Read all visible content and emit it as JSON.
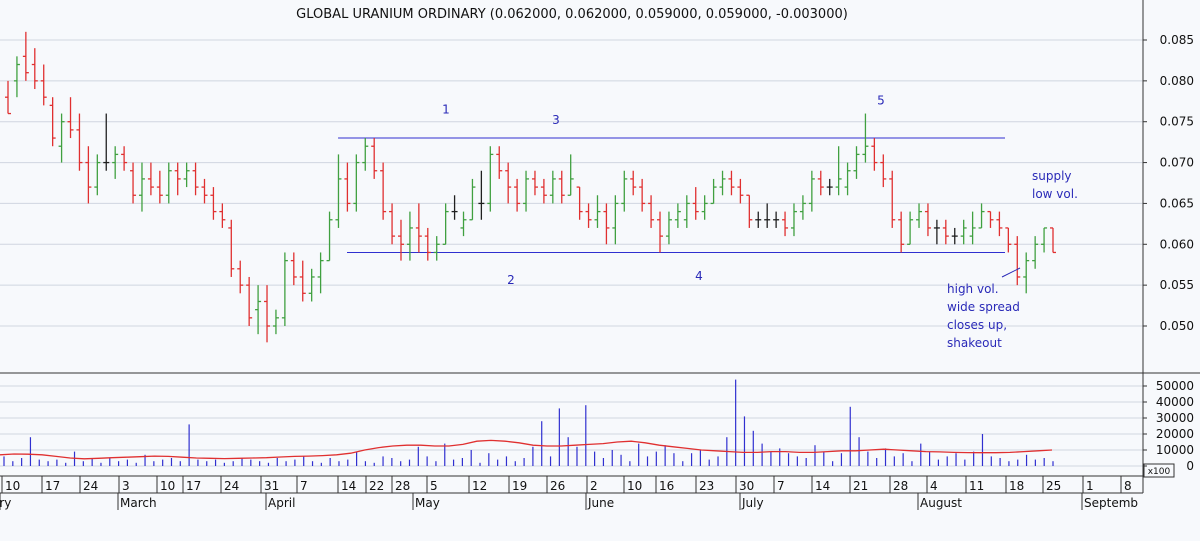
{
  "chart_data": {
    "type": "ohlc",
    "title": "GLOBAL URANIUM ORDINARY (0.062000, 0.062000, 0.059000, 0.059000, -0.003000)",
    "price_axis": {
      "ticks": [
        "0.085",
        "0.080",
        "0.075",
        "0.070",
        "0.065",
        "0.060",
        "0.055",
        "0.050"
      ],
      "range": [
        0.0455,
        0.089
      ]
    },
    "volume_axis": {
      "ticks": [
        "50000",
        "40000",
        "30000",
        "20000",
        "10000",
        "0"
      ],
      "range": [
        0,
        58000
      ],
      "unit_label": "x100"
    },
    "x_axis": {
      "day_labels": [
        "10",
        "17",
        "24",
        "3",
        "10",
        "17",
        "24",
        "31",
        "7",
        "14",
        "22",
        "28",
        "5",
        "12",
        "19",
        "26",
        "2",
        "10",
        "16",
        "23",
        "30",
        "7",
        "14",
        "21",
        "28",
        "4",
        "11",
        "18",
        "25",
        "1",
        "8"
      ],
      "month_labels": [
        "ary",
        "March",
        "April",
        "May",
        "June",
        "July",
        "August",
        "Septemb"
      ]
    },
    "bars": [
      {
        "o": 0.078,
        "h": 0.08,
        "l": 0.076,
        "c": 0.076
      },
      {
        "o": 0.08,
        "h": 0.083,
        "l": 0.078,
        "c": 0.082
      },
      {
        "o": 0.083,
        "h": 0.086,
        "l": 0.08,
        "c": 0.081
      },
      {
        "o": 0.082,
        "h": 0.084,
        "l": 0.079,
        "c": 0.08
      },
      {
        "o": 0.08,
        "h": 0.082,
        "l": 0.077,
        "c": 0.078
      },
      {
        "o": 0.077,
        "h": 0.078,
        "l": 0.072,
        "c": 0.073
      },
      {
        "o": 0.072,
        "h": 0.076,
        "l": 0.07,
        "c": 0.075
      },
      {
        "o": 0.075,
        "h": 0.078,
        "l": 0.073,
        "c": 0.074
      },
      {
        "o": 0.074,
        "h": 0.076,
        "l": 0.069,
        "c": 0.07
      },
      {
        "o": 0.07,
        "h": 0.072,
        "l": 0.065,
        "c": 0.067
      },
      {
        "o": 0.067,
        "h": 0.071,
        "l": 0.066,
        "c": 0.07
      },
      {
        "o": 0.07,
        "h": 0.076,
        "l": 0.069,
        "c": 0.07
      },
      {
        "o": 0.07,
        "h": 0.072,
        "l": 0.068,
        "c": 0.071
      },
      {
        "o": 0.071,
        "h": 0.072,
        "l": 0.069,
        "c": 0.07
      },
      {
        "o": 0.069,
        "h": 0.07,
        "l": 0.065,
        "c": 0.066
      },
      {
        "o": 0.066,
        "h": 0.07,
        "l": 0.064,
        "c": 0.068
      },
      {
        "o": 0.068,
        "h": 0.07,
        "l": 0.066,
        "c": 0.067
      },
      {
        "o": 0.067,
        "h": 0.069,
        "l": 0.065,
        "c": 0.066
      },
      {
        "o": 0.066,
        "h": 0.07,
        "l": 0.065,
        "c": 0.069
      },
      {
        "o": 0.069,
        "h": 0.07,
        "l": 0.066,
        "c": 0.068
      },
      {
        "o": 0.068,
        "h": 0.07,
        "l": 0.067,
        "c": 0.069
      },
      {
        "o": 0.069,
        "h": 0.07,
        "l": 0.066,
        "c": 0.067
      },
      {
        "o": 0.067,
        "h": 0.068,
        "l": 0.065,
        "c": 0.066
      },
      {
        "o": 0.066,
        "h": 0.067,
        "l": 0.063,
        "c": 0.064
      },
      {
        "o": 0.064,
        "h": 0.065,
        "l": 0.062,
        "c": 0.063
      },
      {
        "o": 0.062,
        "h": 0.063,
        "l": 0.056,
        "c": 0.057
      },
      {
        "o": 0.057,
        "h": 0.058,
        "l": 0.054,
        "c": 0.055
      },
      {
        "o": 0.055,
        "h": 0.056,
        "l": 0.05,
        "c": 0.051
      },
      {
        "o": 0.052,
        "h": 0.055,
        "l": 0.049,
        "c": 0.053
      },
      {
        "o": 0.053,
        "h": 0.055,
        "l": 0.048,
        "c": 0.05
      },
      {
        "o": 0.05,
        "h": 0.052,
        "l": 0.049,
        "c": 0.051
      },
      {
        "o": 0.051,
        "h": 0.059,
        "l": 0.05,
        "c": 0.058
      },
      {
        "o": 0.058,
        "h": 0.059,
        "l": 0.055,
        "c": 0.056
      },
      {
        "o": 0.056,
        "h": 0.058,
        "l": 0.053,
        "c": 0.054
      },
      {
        "o": 0.054,
        "h": 0.057,
        "l": 0.053,
        "c": 0.056
      },
      {
        "o": 0.056,
        "h": 0.059,
        "l": 0.054,
        "c": 0.058
      },
      {
        "o": 0.058,
        "h": 0.064,
        "l": 0.058,
        "c": 0.063
      },
      {
        "o": 0.063,
        "h": 0.071,
        "l": 0.062,
        "c": 0.068
      },
      {
        "o": 0.068,
        "h": 0.07,
        "l": 0.064,
        "c": 0.065
      },
      {
        "o": 0.065,
        "h": 0.071,
        "l": 0.064,
        "c": 0.07
      },
      {
        "o": 0.07,
        "h": 0.073,
        "l": 0.069,
        "c": 0.072
      },
      {
        "o": 0.072,
        "h": 0.073,
        "l": 0.068,
        "c": 0.069
      },
      {
        "o": 0.069,
        "h": 0.07,
        "l": 0.063,
        "c": 0.064
      },
      {
        "o": 0.064,
        "h": 0.065,
        "l": 0.06,
        "c": 0.061
      },
      {
        "o": 0.061,
        "h": 0.063,
        "l": 0.058,
        "c": 0.06
      },
      {
        "o": 0.06,
        "h": 0.064,
        "l": 0.058,
        "c": 0.062
      },
      {
        "o": 0.062,
        "h": 0.065,
        "l": 0.059,
        "c": 0.061
      },
      {
        "o": 0.061,
        "h": 0.062,
        "l": 0.058,
        "c": 0.059
      },
      {
        "o": 0.059,
        "h": 0.061,
        "l": 0.058,
        "c": 0.06
      },
      {
        "o": 0.06,
        "h": 0.065,
        "l": 0.06,
        "c": 0.064
      },
      {
        "o": 0.064,
        "h": 0.066,
        "l": 0.063,
        "c": 0.064
      },
      {
        "o": 0.062,
        "h": 0.064,
        "l": 0.061,
        "c": 0.063
      },
      {
        "o": 0.063,
        "h": 0.068,
        "l": 0.063,
        "c": 0.067
      },
      {
        "o": 0.065,
        "h": 0.069,
        "l": 0.063,
        "c": 0.065
      },
      {
        "o": 0.065,
        "h": 0.072,
        "l": 0.064,
        "c": 0.071
      },
      {
        "o": 0.071,
        "h": 0.072,
        "l": 0.068,
        "c": 0.069
      },
      {
        "o": 0.069,
        "h": 0.07,
        "l": 0.065,
        "c": 0.067
      },
      {
        "o": 0.067,
        "h": 0.068,
        "l": 0.064,
        "c": 0.065
      },
      {
        "o": 0.065,
        "h": 0.069,
        "l": 0.064,
        "c": 0.068
      },
      {
        "o": 0.068,
        "h": 0.069,
        "l": 0.066,
        "c": 0.067
      },
      {
        "o": 0.067,
        "h": 0.068,
        "l": 0.065,
        "c": 0.066
      },
      {
        "o": 0.066,
        "h": 0.069,
        "l": 0.065,
        "c": 0.068
      },
      {
        "o": 0.068,
        "h": 0.069,
        "l": 0.065,
        "c": 0.066
      },
      {
        "o": 0.066,
        "h": 0.071,
        "l": 0.066,
        "c": 0.068
      },
      {
        "o": 0.067,
        "h": 0.067,
        "l": 0.063,
        "c": 0.064
      },
      {
        "o": 0.064,
        "h": 0.065,
        "l": 0.062,
        "c": 0.063
      },
      {
        "o": 0.063,
        "h": 0.066,
        "l": 0.062,
        "c": 0.064
      },
      {
        "o": 0.064,
        "h": 0.065,
        "l": 0.06,
        "c": 0.062
      },
      {
        "o": 0.062,
        "h": 0.066,
        "l": 0.06,
        "c": 0.065
      },
      {
        "o": 0.065,
        "h": 0.069,
        "l": 0.064,
        "c": 0.068
      },
      {
        "o": 0.068,
        "h": 0.069,
        "l": 0.066,
        "c": 0.067
      },
      {
        "o": 0.067,
        "h": 0.068,
        "l": 0.064,
        "c": 0.065
      },
      {
        "o": 0.065,
        "h": 0.066,
        "l": 0.062,
        "c": 0.063
      },
      {
        "o": 0.063,
        "h": 0.064,
        "l": 0.059,
        "c": 0.061
      },
      {
        "o": 0.061,
        "h": 0.064,
        "l": 0.06,
        "c": 0.063
      },
      {
        "o": 0.063,
        "h": 0.065,
        "l": 0.062,
        "c": 0.064
      },
      {
        "o": 0.063,
        "h": 0.066,
        "l": 0.062,
        "c": 0.065
      },
      {
        "o": 0.065,
        "h": 0.067,
        "l": 0.063,
        "c": 0.064
      },
      {
        "o": 0.064,
        "h": 0.066,
        "l": 0.063,
        "c": 0.065
      },
      {
        "o": 0.065,
        "h": 0.068,
        "l": 0.065,
        "c": 0.067
      },
      {
        "o": 0.067,
        "h": 0.069,
        "l": 0.066,
        "c": 0.068
      },
      {
        "o": 0.068,
        "h": 0.069,
        "l": 0.066,
        "c": 0.067
      },
      {
        "o": 0.067,
        "h": 0.068,
        "l": 0.065,
        "c": 0.066
      },
      {
        "o": 0.066,
        "h": 0.066,
        "l": 0.062,
        "c": 0.063
      },
      {
        "o": 0.063,
        "h": 0.064,
        "l": 0.062,
        "c": 0.063
      },
      {
        "o": 0.063,
        "h": 0.065,
        "l": 0.062,
        "c": 0.063
      },
      {
        "o": 0.063,
        "h": 0.064,
        "l": 0.062,
        "c": 0.063
      },
      {
        "o": 0.063,
        "h": 0.064,
        "l": 0.061,
        "c": 0.062
      },
      {
        "o": 0.062,
        "h": 0.065,
        "l": 0.061,
        "c": 0.064
      },
      {
        "o": 0.064,
        "h": 0.066,
        "l": 0.063,
        "c": 0.065
      },
      {
        "o": 0.065,
        "h": 0.069,
        "l": 0.064,
        "c": 0.068
      },
      {
        "o": 0.068,
        "h": 0.069,
        "l": 0.066,
        "c": 0.067
      },
      {
        "o": 0.067,
        "h": 0.068,
        "l": 0.066,
        "c": 0.067
      },
      {
        "o": 0.067,
        "h": 0.072,
        "l": 0.066,
        "c": 0.068
      },
      {
        "o": 0.067,
        "h": 0.07,
        "l": 0.066,
        "c": 0.069
      },
      {
        "o": 0.069,
        "h": 0.072,
        "l": 0.068,
        "c": 0.071
      },
      {
        "o": 0.071,
        "h": 0.076,
        "l": 0.07,
        "c": 0.072
      },
      {
        "o": 0.072,
        "h": 0.073,
        "l": 0.069,
        "c": 0.07
      },
      {
        "o": 0.07,
        "h": 0.071,
        "l": 0.067,
        "c": 0.068
      },
      {
        "o": 0.068,
        "h": 0.069,
        "l": 0.062,
        "c": 0.063
      },
      {
        "o": 0.063,
        "h": 0.064,
        "l": 0.059,
        "c": 0.06
      },
      {
        "o": 0.06,
        "h": 0.064,
        "l": 0.06,
        "c": 0.063
      },
      {
        "o": 0.063,
        "h": 0.065,
        "l": 0.062,
        "c": 0.064
      },
      {
        "o": 0.064,
        "h": 0.065,
        "l": 0.061,
        "c": 0.062
      },
      {
        "o": 0.062,
        "h": 0.063,
        "l": 0.06,
        "c": 0.062
      },
      {
        "o": 0.062,
        "h": 0.063,
        "l": 0.06,
        "c": 0.061
      },
      {
        "o": 0.061,
        "h": 0.062,
        "l": 0.06,
        "c": 0.061
      },
      {
        "o": 0.061,
        "h": 0.063,
        "l": 0.06,
        "c": 0.062
      },
      {
        "o": 0.061,
        "h": 0.064,
        "l": 0.06,
        "c": 0.062
      },
      {
        "o": 0.062,
        "h": 0.065,
        "l": 0.062,
        "c": 0.064
      },
      {
        "o": 0.064,
        "h": 0.064,
        "l": 0.062,
        "c": 0.063
      },
      {
        "o": 0.063,
        "h": 0.064,
        "l": 0.061,
        "c": 0.062
      },
      {
        "o": 0.062,
        "h": 0.062,
        "l": 0.059,
        "c": 0.06
      },
      {
        "o": 0.06,
        "h": 0.061,
        "l": 0.055,
        "c": 0.056
      },
      {
        "o": 0.056,
        "h": 0.059,
        "l": 0.054,
        "c": 0.058
      },
      {
        "o": 0.058,
        "h": 0.061,
        "l": 0.057,
        "c": 0.06
      },
      {
        "o": 0.06,
        "h": 0.062,
        "l": 0.059,
        "c": 0.062
      },
      {
        "o": 0.062,
        "h": 0.062,
        "l": 0.059,
        "c": 0.059
      }
    ],
    "volume": [
      6000,
      3000,
      5000,
      18000,
      4000,
      3000,
      4000,
      2000,
      9000,
      3000,
      5000,
      2000,
      5000,
      3000,
      4000,
      2000,
      7000,
      3000,
      4000,
      5000,
      3000,
      26000,
      4000,
      3000,
      4000,
      2000,
      3000,
      5000,
      4000,
      3000,
      2000,
      5000,
      3000,
      4000,
      6000,
      3000,
      2000,
      5000,
      3000,
      4000,
      9000,
      3000,
      2000,
      6000,
      5000,
      3000,
      4000,
      12000,
      6000,
      3000,
      14000,
      4000,
      5000,
      10000,
      2000,
      8000,
      4000,
      6000,
      3000,
      5000,
      12000,
      28000,
      6000,
      36000,
      18000,
      12000,
      38000,
      9000,
      5000,
      10000,
      7000,
      3000,
      14000,
      6000,
      9000,
      13000,
      8000,
      3000,
      8000,
      10000,
      4000,
      6000,
      18000,
      54000,
      31000,
      22000,
      14000,
      9000,
      11000,
      8000,
      6000,
      5000,
      13000,
      9000,
      3000,
      8000,
      37000,
      18000,
      9000,
      5000,
      11000,
      6000,
      8000,
      3000,
      14000,
      9000,
      4000,
      6000,
      8000,
      4000,
      9000,
      20000,
      6000,
      5000,
      3000,
      4000,
      7000,
      4000,
      5000,
      3000
    ],
    "volume_ma": [
      7000,
      7500,
      7400,
      7000,
      6000,
      5000,
      4500,
      4800,
      5200,
      5500,
      5800,
      6200,
      6000,
      5500,
      5000,
      4800,
      4600,
      4800,
      5000,
      5200,
      5600,
      6000,
      6200,
      6500,
      7000,
      8000,
      10000,
      11500,
      12500,
      13000,
      13000,
      12500,
      12500,
      13500,
      15500,
      16000,
      15500,
      14500,
      13000,
      12500,
      12500,
      13000,
      13500,
      14000,
      15000,
      15500,
      14500,
      13000,
      12000,
      11000,
      10000,
      9500,
      9000,
      8500,
      8500,
      9000,
      9000,
      8500,
      8500,
      9000,
      9500,
      9500,
      10000,
      10500,
      10000,
      9500,
      9000,
      8800,
      8500,
      8400,
      8300,
      8300,
      8500,
      9000,
      9500,
      10000
    ],
    "levels": [
      {
        "price": 0.073,
        "from": 29,
        "to": 84
      },
      {
        "price": 0.059,
        "from": 30,
        "to": 84
      }
    ],
    "point_labels": [
      {
        "text": "1",
        "bar": 36,
        "price": 0.0765
      },
      {
        "text": "2",
        "bar": 42,
        "price": 0.0556
      },
      {
        "text": "3",
        "bar": 46,
        "price": 0.0752
      },
      {
        "text": "4",
        "bar": 58,
        "price": 0.0561
      },
      {
        "text": "5",
        "bar": 74,
        "price": 0.0776
      }
    ],
    "annotations": [
      {
        "lines": [
          "supply",
          "low vol."
        ],
        "align": "left"
      },
      {
        "lines": [
          "high vol.",
          "wide spread",
          "closes up,",
          "shakeout"
        ],
        "align": "left"
      }
    ]
  },
  "colors": {
    "up": "#40a040",
    "down": "#e03030",
    "unchanged": "#202020",
    "volume": "#3030d0",
    "volume_ma": "#e03030",
    "levels": "#3030d0",
    "labels": "#2a2ab8",
    "grid": "#d0d6e0",
    "background": "#f7f9fc"
  }
}
